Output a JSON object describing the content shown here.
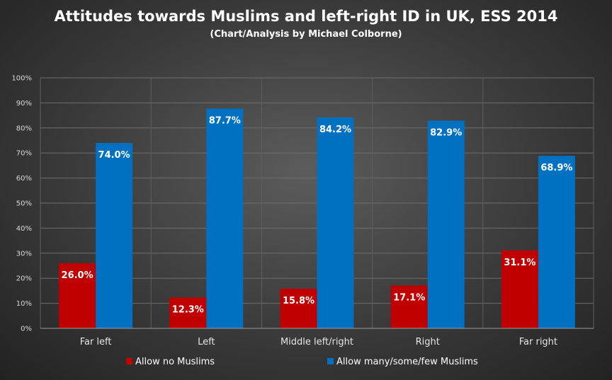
{
  "chart_data": {
    "type": "bar",
    "title": "Attitudes towards Muslims and left-right ID in UK, ESS 2014",
    "subtitle": "(Chart/Analysis  by Michael Colborne)",
    "categories": [
      "Far left",
      "Left",
      "Middle left/right",
      "Right",
      "Far right"
    ],
    "series": [
      {
        "name": "Allow no Muslims",
        "values": [
          26.0,
          12.3,
          15.8,
          17.1,
          31.1
        ],
        "labels": [
          "26.0%",
          "12.3%",
          "15.8%",
          "17.1%",
          "31.1%"
        ],
        "color": "#c00000"
      },
      {
        "name": "Allow many/some/few Muslims",
        "values": [
          74.0,
          87.7,
          84.2,
          82.9,
          68.9
        ],
        "labels": [
          "74.0%",
          "87.7%",
          "84.2%",
          "82.9%",
          "68.9%"
        ],
        "color": "#0070c0"
      }
    ],
    "ylim": [
      0,
      100
    ],
    "yticks": [
      "0%",
      "10%",
      "20%",
      "30%",
      "40%",
      "50%",
      "60%",
      "70%",
      "80%",
      "90%",
      "100%"
    ],
    "grid": true,
    "legend": "bottom"
  }
}
